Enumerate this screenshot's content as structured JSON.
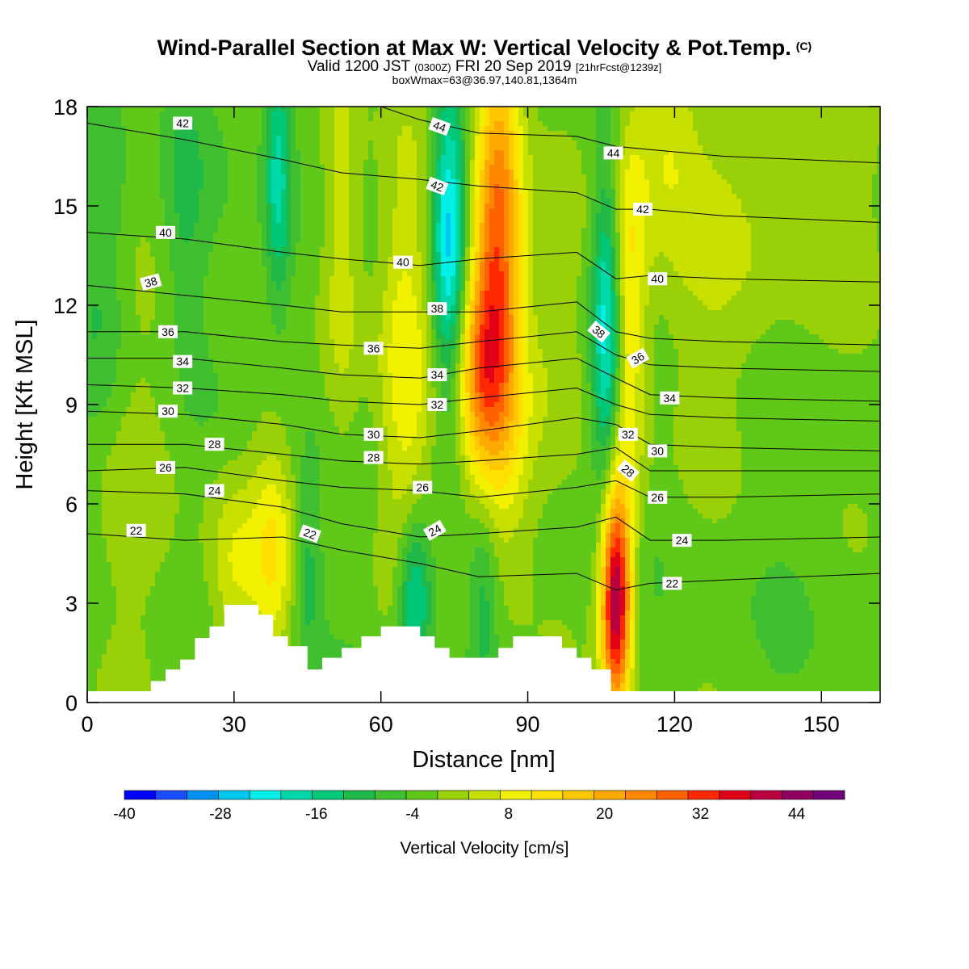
{
  "title": {
    "main": "Wind-Parallel Section at Max W: Vertical Velocity & Pot.Temp.",
    "copyright": "(C)",
    "valid_prefix": "Valid 1200 JST",
    "valid_z": "(0300Z)",
    "valid_date": "FRI 20 Sep 2019",
    "forecast": "[21hrFcst@1239z]",
    "box": "boxWmax=63@36.97,140.81,1364m"
  },
  "chart_data": {
    "type": "heatmap",
    "xlabel": "Distance [nm]",
    "ylabel": "Height [Kft MSL]",
    "xlim": [
      0,
      162
    ],
    "ylim": [
      0,
      18
    ],
    "x_ticks": [
      0,
      30,
      60,
      90,
      120,
      150
    ],
    "y_ticks": [
      0,
      3,
      6,
      9,
      12,
      15,
      18
    ],
    "colorbar": {
      "label": "Vertical Velocity [cm/s]",
      "min": -40,
      "max": 50,
      "step": 4,
      "tick_values": [
        -40,
        -28,
        -16,
        -4,
        8,
        20,
        32,
        44
      ],
      "colors": [
        "#0000ff",
        "#1a4dff",
        "#0090f0",
        "#00c8f0",
        "#00f0e8",
        "#00d8a8",
        "#00c878",
        "#20b848",
        "#40c030",
        "#60c818",
        "#9ad008",
        "#c8e000",
        "#f0f000",
        "#ffe000",
        "#ffc800",
        "#ffaa00",
        "#ff8800",
        "#ff6000",
        "#ff2800",
        "#e00018",
        "#b80040",
        "#900060",
        "#700078"
      ]
    },
    "updrafts": [
      {
        "name": "up-low-1",
        "x": 30,
        "y": 4.0,
        "sx": 4,
        "sy": 2.0,
        "v": 10
      },
      {
        "name": "up-low-2",
        "x": 38,
        "y": 4.5,
        "sx": 3,
        "sy": 2.5,
        "v": 12
      },
      {
        "name": "up-col-1",
        "x": 52,
        "y": 14,
        "sx": 3,
        "sy": 5,
        "v": 10
      },
      {
        "name": "up-col-2",
        "x": 65,
        "y": 10,
        "sx": 4,
        "sy": 5,
        "v": 12
      },
      {
        "name": "up-col-3",
        "x": 84,
        "y": 14,
        "sx": 3.5,
        "sy": 4.5,
        "v": 32
      },
      {
        "name": "up-col-4",
        "x": 80,
        "y": 10,
        "sx": 3.5,
        "sy": 2.5,
        "v": 22
      },
      {
        "name": "up-col-5",
        "x": 87,
        "y": 8,
        "sx": 4,
        "sy": 3,
        "v": 8
      },
      {
        "name": "up-col-6",
        "x": 108,
        "y": 3.2,
        "sx": 2.2,
        "sy": 2.5,
        "v": 48
      },
      {
        "name": "up-col-7",
        "x": 111,
        "y": 12,
        "sx": 2.5,
        "sy": 4.5,
        "v": 14
      },
      {
        "name": "up-col-8",
        "x": 118,
        "y": 17,
        "sx": 4,
        "sy": 2,
        "v": 8
      },
      {
        "name": "up-col-9",
        "x": 96,
        "y": 12,
        "sx": 4,
        "sy": 3,
        "v": 4
      },
      {
        "name": "up-col-10",
        "x": 128,
        "y": 14,
        "sx": 12,
        "sy": 4,
        "v": 6
      },
      {
        "name": "up-col-11",
        "x": 150,
        "y": 16,
        "sx": 8,
        "sy": 3,
        "v": 6
      },
      {
        "name": "up-col-12",
        "x": 10,
        "y": 7,
        "sx": 8,
        "sy": 5,
        "v": 4
      }
    ],
    "downdrafts": [
      {
        "name": "dn-1",
        "x": 39,
        "y": 16,
        "sx": 2,
        "sy": 3,
        "v": -16
      },
      {
        "name": "dn-2",
        "x": 74,
        "y": 14,
        "sx": 2.5,
        "sy": 3.5,
        "v": -24
      },
      {
        "name": "dn-3",
        "x": 67,
        "y": 3.2,
        "sx": 2.5,
        "sy": 1.8,
        "v": -20
      },
      {
        "name": "dn-4",
        "x": 106,
        "y": 11,
        "sx": 2,
        "sy": 3.5,
        "v": -20
      },
      {
        "name": "dn-5",
        "x": 45,
        "y": 4,
        "sx": 2,
        "sy": 2,
        "v": -8
      },
      {
        "name": "dn-6",
        "x": 81,
        "y": 3,
        "sx": 2,
        "sy": 2,
        "v": -8
      },
      {
        "name": "dn-7",
        "x": 3,
        "y": 13,
        "sx": 4,
        "sy": 4,
        "v": -8
      },
      {
        "name": "dn-8",
        "x": 20,
        "y": 15,
        "sx": 3,
        "sy": 3,
        "v": -6
      }
    ],
    "terrain": [
      [
        0,
        0.3
      ],
      [
        13,
        0.3
      ],
      [
        13,
        0.65
      ],
      [
        16,
        0.65
      ],
      [
        16,
        1.0
      ],
      [
        19,
        1.0
      ],
      [
        19,
        1.3
      ],
      [
        22,
        1.3
      ],
      [
        22,
        1.95
      ],
      [
        25,
        1.95
      ],
      [
        25,
        2.3
      ],
      [
        28,
        2.3
      ],
      [
        28,
        2.95
      ],
      [
        35,
        2.95
      ],
      [
        35,
        2.65
      ],
      [
        38,
        2.65
      ],
      [
        38,
        2.0
      ],
      [
        41,
        2.0
      ],
      [
        41,
        1.7
      ],
      [
        45,
        1.7
      ],
      [
        45,
        1.0
      ],
      [
        48,
        1.0
      ],
      [
        48,
        1.35
      ],
      [
        52,
        1.35
      ],
      [
        52,
        1.65
      ],
      [
        56,
        1.65
      ],
      [
        56,
        2.0
      ],
      [
        60,
        2.0
      ],
      [
        60,
        2.3
      ],
      [
        68,
        2.3
      ],
      [
        68,
        2.0
      ],
      [
        71,
        2.0
      ],
      [
        71,
        1.65
      ],
      [
        74,
        1.65
      ],
      [
        74,
        1.35
      ],
      [
        84,
        1.35
      ],
      [
        84,
        1.65
      ],
      [
        87,
        1.65
      ],
      [
        87,
        2.0
      ],
      [
        97,
        2.0
      ],
      [
        97,
        1.65
      ],
      [
        100,
        1.65
      ],
      [
        100,
        1.35
      ],
      [
        103,
        1.35
      ],
      [
        103,
        1.0
      ],
      [
        107,
        1.0
      ],
      [
        107,
        0.3
      ],
      [
        162,
        0.3
      ]
    ],
    "isentropes": [
      {
        "label": "22",
        "pts": [
          [
            0,
            5.1
          ],
          [
            20,
            4.9
          ],
          [
            40,
            5.0
          ],
          [
            52,
            4.6
          ],
          [
            68,
            4.2
          ],
          [
            80,
            3.8
          ],
          [
            100,
            3.9
          ],
          [
            108,
            3.4
          ],
          [
            115,
            3.6
          ],
          [
            130,
            3.7
          ],
          [
            162,
            3.9
          ]
        ]
      },
      {
        "label": "24",
        "pts": [
          [
            0,
            6.4
          ],
          [
            20,
            6.3
          ],
          [
            40,
            5.9
          ],
          [
            52,
            5.4
          ],
          [
            68,
            5.0
          ],
          [
            80,
            5.1
          ],
          [
            100,
            5.3
          ],
          [
            108,
            5.6
          ],
          [
            115,
            4.9
          ],
          [
            130,
            4.9
          ],
          [
            162,
            5.0
          ]
        ]
      },
      {
        "label": "26",
        "pts": [
          [
            0,
            7.0
          ],
          [
            20,
            7.1
          ],
          [
            40,
            6.7
          ],
          [
            52,
            6.5
          ],
          [
            68,
            6.4
          ],
          [
            80,
            6.2
          ],
          [
            100,
            6.5
          ],
          [
            108,
            6.7
          ],
          [
            115,
            6.2
          ],
          [
            130,
            6.2
          ],
          [
            162,
            6.3
          ]
        ]
      },
      {
        "label": "28",
        "pts": [
          [
            0,
            7.8
          ],
          [
            20,
            7.8
          ],
          [
            40,
            7.5
          ],
          [
            52,
            7.3
          ],
          [
            68,
            7.2
          ],
          [
            80,
            7.3
          ],
          [
            100,
            7.5
          ],
          [
            108,
            7.7
          ],
          [
            115,
            7.0
          ],
          [
            130,
            7.0
          ],
          [
            162,
            7.0
          ]
        ]
      },
      {
        "label": "30",
        "pts": [
          [
            0,
            8.8
          ],
          [
            20,
            8.7
          ],
          [
            40,
            8.4
          ],
          [
            52,
            8.1
          ],
          [
            68,
            8.0
          ],
          [
            80,
            8.2
          ],
          [
            100,
            8.6
          ],
          [
            108,
            8.4
          ],
          [
            115,
            7.8
          ],
          [
            130,
            7.7
          ],
          [
            162,
            7.6
          ]
        ]
      },
      {
        "label": "32",
        "pts": [
          [
            0,
            9.6
          ],
          [
            20,
            9.5
          ],
          [
            40,
            9.3
          ],
          [
            52,
            9.1
          ],
          [
            68,
            9.0
          ],
          [
            80,
            9.2
          ],
          [
            100,
            9.5
          ],
          [
            108,
            9.0
          ],
          [
            115,
            8.7
          ],
          [
            130,
            8.6
          ],
          [
            162,
            8.5
          ]
        ]
      },
      {
        "label": "34",
        "pts": [
          [
            0,
            10.4
          ],
          [
            20,
            10.4
          ],
          [
            40,
            10.1
          ],
          [
            52,
            9.9
          ],
          [
            68,
            9.8
          ],
          [
            80,
            10.1
          ],
          [
            100,
            10.4
          ],
          [
            108,
            9.8
          ],
          [
            115,
            9.3
          ],
          [
            130,
            9.2
          ],
          [
            162,
            9.1
          ]
        ]
      },
      {
        "label": "36",
        "pts": [
          [
            0,
            11.2
          ],
          [
            20,
            11.2
          ],
          [
            40,
            10.9
          ],
          [
            52,
            10.8
          ],
          [
            68,
            10.7
          ],
          [
            80,
            10.9
          ],
          [
            100,
            11.2
          ],
          [
            108,
            10.5
          ],
          [
            115,
            10.2
          ],
          [
            130,
            10.1
          ],
          [
            162,
            10.0
          ]
        ]
      },
      {
        "label": "38",
        "pts": [
          [
            0,
            12.6
          ],
          [
            20,
            12.3
          ],
          [
            40,
            12.0
          ],
          [
            52,
            11.8
          ],
          [
            68,
            11.8
          ],
          [
            80,
            11.8
          ],
          [
            100,
            12.1
          ],
          [
            108,
            11.2
          ],
          [
            115,
            11.0
          ],
          [
            130,
            10.9
          ],
          [
            162,
            10.8
          ]
        ]
      },
      {
        "label": "40",
        "pts": [
          [
            0,
            14.2
          ],
          [
            20,
            14.0
          ],
          [
            40,
            13.6
          ],
          [
            52,
            13.4
          ],
          [
            68,
            13.2
          ],
          [
            80,
            13.4
          ],
          [
            100,
            13.6
          ],
          [
            108,
            12.8
          ],
          [
            115,
            12.9
          ],
          [
            130,
            12.8
          ],
          [
            162,
            12.7
          ]
        ]
      },
      {
        "label": "42",
        "pts": [
          [
            0,
            17.5
          ],
          [
            20,
            17.0
          ],
          [
            40,
            16.4
          ],
          [
            52,
            16.0
          ],
          [
            68,
            15.8
          ],
          [
            80,
            15.6
          ],
          [
            100,
            15.4
          ],
          [
            108,
            14.9
          ],
          [
            115,
            14.9
          ],
          [
            130,
            14.7
          ],
          [
            162,
            14.5
          ]
        ]
      },
      {
        "label": "44",
        "pts": [
          [
            60,
            18.0
          ],
          [
            68,
            17.6
          ],
          [
            80,
            17.2
          ],
          [
            100,
            17.1
          ],
          [
            108,
            16.8
          ],
          [
            115,
            16.7
          ],
          [
            130,
            16.5
          ],
          [
            162,
            16.3
          ]
        ]
      }
    ],
    "contour_labels": [
      {
        "text": "42",
        "x": 19.5,
        "y": 17.5,
        "rot": 0
      },
      {
        "text": "44",
        "x": 72,
        "y": 17.4,
        "rot": 20
      },
      {
        "text": "44",
        "x": 107.5,
        "y": 16.6,
        "rot": 0
      },
      {
        "text": "42",
        "x": 71.5,
        "y": 15.6,
        "rot": 20
      },
      {
        "text": "42",
        "x": 113.5,
        "y": 14.9,
        "rot": 0
      },
      {
        "text": "40",
        "x": 16,
        "y": 14.2,
        "rot": 0
      },
      {
        "text": "40",
        "x": 64.5,
        "y": 13.3,
        "rot": 0
      },
      {
        "text": "40",
        "x": 116.5,
        "y": 12.8,
        "rot": 0
      },
      {
        "text": "38",
        "x": 13,
        "y": 12.7,
        "rot": -15
      },
      {
        "text": "38",
        "x": 71.5,
        "y": 11.9,
        "rot": 0
      },
      {
        "text": "38",
        "x": 104.5,
        "y": 11.2,
        "rot": 40
      },
      {
        "text": "36",
        "x": 16.5,
        "y": 11.2,
        "rot": 0
      },
      {
        "text": "36",
        "x": 58.5,
        "y": 10.7,
        "rot": 0
      },
      {
        "text": "36",
        "x": 112.5,
        "y": 10.4,
        "rot": -30
      },
      {
        "text": "34",
        "x": 19.5,
        "y": 10.3,
        "rot": 0
      },
      {
        "text": "34",
        "x": 71.5,
        "y": 9.9,
        "rot": 0
      },
      {
        "text": "34",
        "x": 119,
        "y": 9.2,
        "rot": 0
      },
      {
        "text": "32",
        "x": 19.5,
        "y": 9.5,
        "rot": 0
      },
      {
        "text": "32",
        "x": 71.5,
        "y": 9.0,
        "rot": 0
      },
      {
        "text": "32",
        "x": 110.5,
        "y": 8.1,
        "rot": 0
      },
      {
        "text": "30",
        "x": 16.5,
        "y": 8.8,
        "rot": 0
      },
      {
        "text": "30",
        "x": 58.5,
        "y": 8.1,
        "rot": 0
      },
      {
        "text": "30",
        "x": 116.5,
        "y": 7.6,
        "rot": 0
      },
      {
        "text": "28",
        "x": 26,
        "y": 7.8,
        "rot": 0
      },
      {
        "text": "28",
        "x": 58.5,
        "y": 7.4,
        "rot": 0
      },
      {
        "text": "28",
        "x": 110.5,
        "y": 7.0,
        "rot": 40
      },
      {
        "text": "26",
        "x": 16,
        "y": 7.1,
        "rot": 0
      },
      {
        "text": "26",
        "x": 68.5,
        "y": 6.5,
        "rot": 0
      },
      {
        "text": "26",
        "x": 116.5,
        "y": 6.2,
        "rot": 0
      },
      {
        "text": "24",
        "x": 26,
        "y": 6.4,
        "rot": 0
      },
      {
        "text": "24",
        "x": 71,
        "y": 5.2,
        "rot": -30
      },
      {
        "text": "24",
        "x": 121.5,
        "y": 4.9,
        "rot": 0
      },
      {
        "text": "22",
        "x": 10,
        "y": 5.2,
        "rot": 0
      },
      {
        "text": "22",
        "x": 45.5,
        "y": 5.1,
        "rot": 20
      },
      {
        "text": "22",
        "x": 119.5,
        "y": 3.6,
        "rot": 0
      }
    ]
  }
}
